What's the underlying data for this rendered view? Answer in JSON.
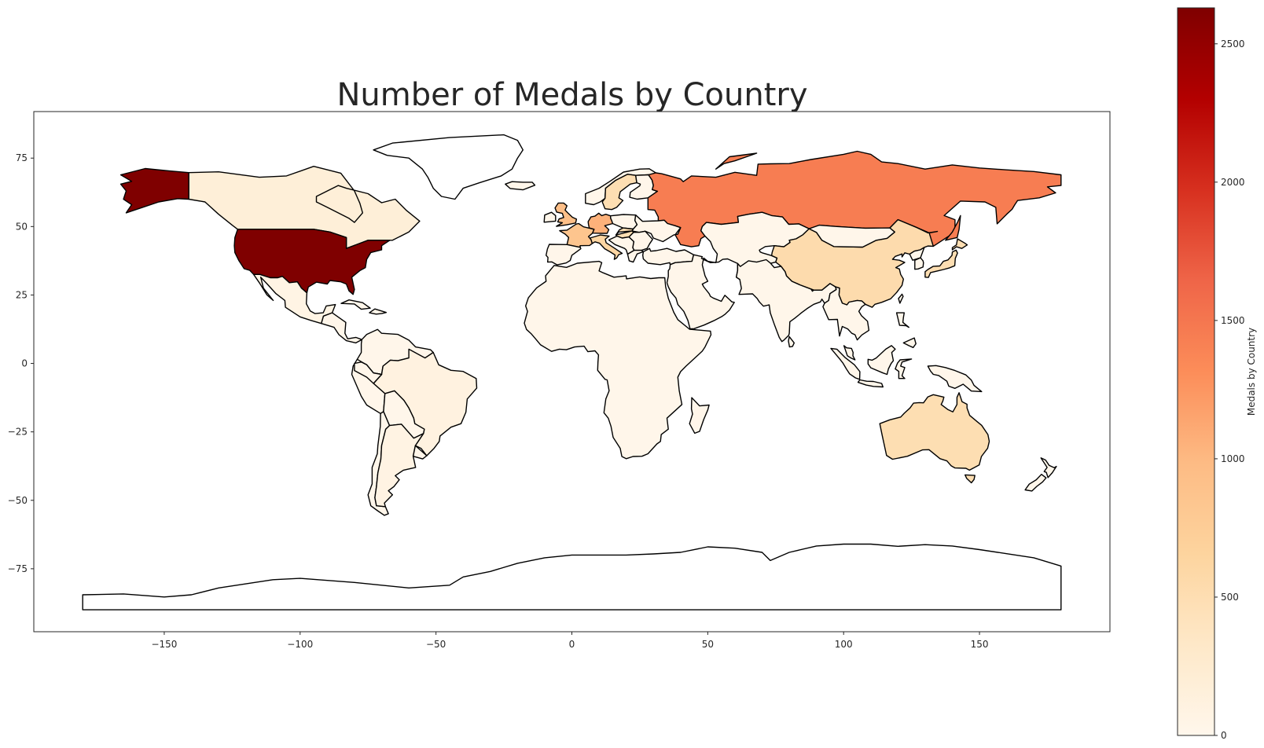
{
  "chart_data": {
    "type": "choropleth",
    "title": "Number of Medals by Country",
    "xlabel": "",
    "ylabel": "",
    "xlim": [
      -198,
      198
    ],
    "ylim": [
      -98,
      92
    ],
    "x_ticks": [
      -150,
      -100,
      -50,
      0,
      50,
      100,
      150
    ],
    "y_ticks": [
      -75,
      -50,
      -25,
      0,
      25,
      50,
      75
    ],
    "x_tick_labels": [
      "−150",
      "−100",
      "−50",
      "0",
      "50",
      "100",
      "150"
    ],
    "y_tick_labels": [
      "−75",
      "−50",
      "−25",
      "0",
      "25",
      "50",
      "75"
    ],
    "grid": false,
    "colormap": "OrRd",
    "colorbar": {
      "label": "Medals by Country",
      "range": [
        0,
        2630
      ],
      "ticks": [
        0,
        500,
        1000,
        1500,
        2000,
        2500
      ],
      "tick_labels": [
        "0",
        "500",
        "1000",
        "1500",
        "2000",
        "2500"
      ],
      "colors": [
        "#fff7ec",
        "#fee8c8",
        "#fdd49e",
        "#fdbb84",
        "#fc8d59",
        "#ef6548",
        "#d7301f",
        "#b30000",
        "#7f0000"
      ]
    },
    "regions": [
      {
        "name": "United States",
        "value": 2630
      },
      {
        "name": "Alaska (United States)",
        "value": 2630
      },
      {
        "name": "Russia",
        "value": 1450
      },
      {
        "name": "Germany",
        "value": 1060
      },
      {
        "name": "United Kingdom",
        "value": 930
      },
      {
        "name": "France",
        "value": 860
      },
      {
        "name": "China",
        "value": 540
      },
      {
        "name": "Australia",
        "value": 500
      },
      {
        "name": "Italy",
        "value": 620
      },
      {
        "name": "Sweden",
        "value": 500
      },
      {
        "name": "Hungary",
        "value": 500
      },
      {
        "name": "Canada",
        "value": 180
      },
      {
        "name": "Japan",
        "value": 500
      },
      {
        "name": "Brazil",
        "value": 110
      },
      {
        "name": "Argentina",
        "value": 80
      },
      {
        "name": "Mexico",
        "value": 70
      },
      {
        "name": "Other countries",
        "value": 20
      },
      {
        "name": "Greenland",
        "value": 0
      },
      {
        "name": "Antarctica",
        "value": 0
      }
    ]
  }
}
